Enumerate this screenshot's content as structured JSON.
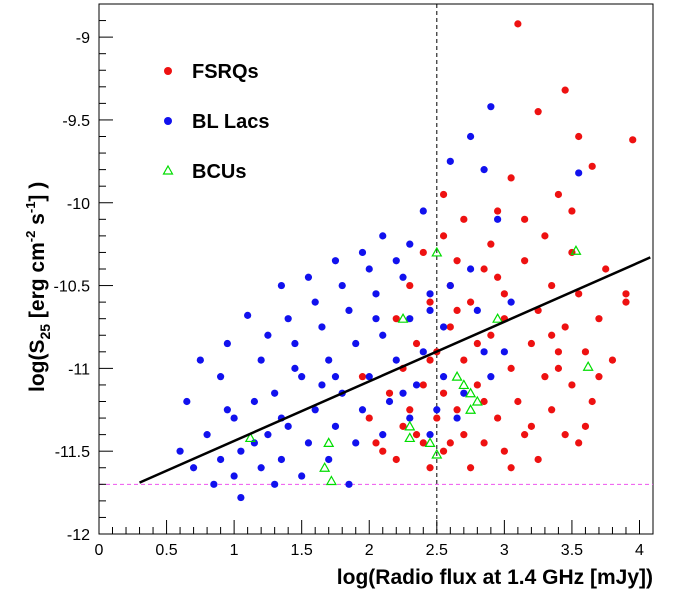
{
  "chart_data": {
    "type": "scatter",
    "xlabel": "log(Radio flux at 1.4 GHz [mJy])",
    "ylabel_main": "log(S",
    "ylabel_sub": "25",
    "ylabel_mid1": " [erg cm",
    "ylabel_sup1": "-2",
    "ylabel_mid2": " s",
    "ylabel_sup2": "-1",
    "ylabel_end": "] )",
    "xlim": [
      0,
      4.1
    ],
    "ylim": [
      -12,
      -8.8
    ],
    "x_ticks": [
      "0",
      "0.5",
      "1",
      "1.5",
      "2",
      "2.5",
      "3",
      "3.5",
      "4"
    ],
    "x_tick_values": [
      0,
      0.5,
      1,
      1.5,
      2,
      2.5,
      3,
      3.5,
      4
    ],
    "y_ticks": [
      "-12",
      "-11.5",
      "-11",
      "-10.5",
      "-10",
      "-9.5",
      "-9"
    ],
    "y_tick_values": [
      -12,
      -11.5,
      -11,
      -10.5,
      -10,
      -9.5,
      -9
    ],
    "legend_position": "top-left",
    "colors": {
      "fsrq": "#ee1111",
      "bllac": "#1111ee",
      "bcu": "#00dd00",
      "fit_line": "#000000",
      "vertical_ref": "#000000",
      "horizontal_ref": "#ee55ee"
    },
    "reference_lines": {
      "vertical_x": 2.5,
      "horizontal_y": -11.7
    },
    "fit_line": {
      "x": [
        0.3,
        4.08
      ],
      "y": [
        -11.69,
        -10.33
      ]
    },
    "series": [
      {
        "name": "FSRQs",
        "marker": "filled-circle",
        "points": [
          [
            3.1,
            -8.92
          ],
          [
            3.45,
            -9.32
          ],
          [
            3.25,
            -9.45
          ],
          [
            3.55,
            -9.6
          ],
          [
            3.95,
            -9.62
          ],
          [
            3.65,
            -9.78
          ],
          [
            3.4,
            -9.95
          ],
          [
            3.05,
            -9.85
          ],
          [
            2.95,
            -10.05
          ],
          [
            2.55,
            -9.95
          ],
          [
            2.7,
            -10.1
          ],
          [
            3.5,
            -10.05
          ],
          [
            3.75,
            -10.4
          ],
          [
            3.9,
            -10.55
          ],
          [
            3.3,
            -10.2
          ],
          [
            2.55,
            -10.2
          ],
          [
            2.4,
            -10.3
          ],
          [
            2.65,
            -10.35
          ],
          [
            2.85,
            -10.4
          ],
          [
            3.15,
            -10.35
          ],
          [
            3.35,
            -10.5
          ],
          [
            3.55,
            -10.55
          ],
          [
            3.7,
            -10.7
          ],
          [
            2.3,
            -10.5
          ],
          [
            2.45,
            -10.6
          ],
          [
            2.75,
            -10.6
          ],
          [
            3.0,
            -10.55
          ],
          [
            3.25,
            -10.65
          ],
          [
            3.45,
            -10.75
          ],
          [
            2.2,
            -10.7
          ],
          [
            2.6,
            -10.75
          ],
          [
            2.9,
            -10.8
          ],
          [
            3.2,
            -10.85
          ],
          [
            3.4,
            -10.9
          ],
          [
            3.6,
            -10.9
          ],
          [
            2.35,
            -10.85
          ],
          [
            2.5,
            -10.9
          ],
          [
            2.7,
            -10.95
          ],
          [
            3.05,
            -11.0
          ],
          [
            3.3,
            -11.05
          ],
          [
            3.5,
            -11.1
          ],
          [
            2.25,
            -11.0
          ],
          [
            2.4,
            -11.1
          ],
          [
            2.55,
            -11.15
          ],
          [
            2.8,
            -11.1
          ],
          [
            3.1,
            -11.2
          ],
          [
            3.35,
            -11.25
          ],
          [
            3.65,
            -11.2
          ],
          [
            2.3,
            -11.25
          ],
          [
            2.5,
            -11.3
          ],
          [
            2.65,
            -11.25
          ],
          [
            2.95,
            -11.3
          ],
          [
            3.2,
            -11.35
          ],
          [
            3.45,
            -11.4
          ],
          [
            2.35,
            -11.4
          ],
          [
            2.6,
            -11.45
          ],
          [
            2.85,
            -11.45
          ],
          [
            3.0,
            -11.5
          ],
          [
            3.25,
            -11.55
          ],
          [
            3.55,
            -11.45
          ],
          [
            2.2,
            -11.55
          ],
          [
            2.45,
            -11.6
          ],
          [
            2.75,
            -11.6
          ],
          [
            3.05,
            -11.6
          ],
          [
            2.1,
            -11.5
          ],
          [
            2.0,
            -11.3
          ],
          [
            1.95,
            -11.05
          ],
          [
            2.15,
            -11.15
          ],
          [
            2.05,
            -11.45
          ],
          [
            3.8,
            -10.95
          ],
          [
            3.9,
            -10.6
          ],
          [
            2.9,
            -10.25
          ],
          [
            3.15,
            -10.1
          ],
          [
            2.6,
            -10.5
          ],
          [
            2.85,
            -11.2
          ],
          [
            3.35,
            -10.8
          ],
          [
            3.6,
            -11.35
          ],
          [
            2.4,
            -11.45
          ],
          [
            2.55,
            -11.5
          ],
          [
            3.15,
            -11.4
          ],
          [
            2.25,
            -11.35
          ],
          [
            2.7,
            -11.4
          ],
          [
            3.4,
            -11.0
          ],
          [
            2.8,
            -10.85
          ],
          [
            2.45,
            -10.95
          ],
          [
            3.0,
            -10.7
          ],
          [
            3.7,
            -11.05
          ],
          [
            2.65,
            -10.65
          ],
          [
            2.95,
            -10.45
          ],
          [
            3.5,
            -10.3
          ]
        ]
      },
      {
        "name": "BL Lacs",
        "marker": "filled-circle",
        "points": [
          [
            2.9,
            -9.42
          ],
          [
            2.75,
            -9.6
          ],
          [
            2.85,
            -9.8
          ],
          [
            3.55,
            -9.82
          ],
          [
            2.6,
            -9.75
          ],
          [
            2.4,
            -10.05
          ],
          [
            2.3,
            -10.25
          ],
          [
            2.1,
            -10.2
          ],
          [
            1.95,
            -10.3
          ],
          [
            1.75,
            -10.35
          ],
          [
            1.55,
            -10.45
          ],
          [
            1.35,
            -10.5
          ],
          [
            1.1,
            -10.68
          ],
          [
            0.75,
            -10.95
          ],
          [
            0.9,
            -11.05
          ],
          [
            1.2,
            -10.95
          ],
          [
            1.45,
            -10.85
          ],
          [
            1.65,
            -10.75
          ],
          [
            1.85,
            -10.65
          ],
          [
            2.05,
            -10.55
          ],
          [
            2.25,
            -10.45
          ],
          [
            0.6,
            -11.5
          ],
          [
            0.8,
            -11.4
          ],
          [
            1.0,
            -11.3
          ],
          [
            1.15,
            -11.2
          ],
          [
            1.3,
            -11.15
          ],
          [
            1.5,
            -11.05
          ],
          [
            1.7,
            -10.95
          ],
          [
            1.9,
            -10.85
          ],
          [
            2.1,
            -10.8
          ],
          [
            2.3,
            -10.7
          ],
          [
            2.45,
            -10.65
          ],
          [
            0.7,
            -11.6
          ],
          [
            0.9,
            -11.55
          ],
          [
            1.05,
            -11.5
          ],
          [
            1.25,
            -11.4
          ],
          [
            1.4,
            -11.35
          ],
          [
            1.6,
            -11.25
          ],
          [
            1.8,
            -11.15
          ],
          [
            2.0,
            -11.05
          ],
          [
            2.2,
            -10.95
          ],
          [
            2.4,
            -10.9
          ],
          [
            0.85,
            -11.7
          ],
          [
            1.0,
            -11.65
          ],
          [
            1.2,
            -11.6
          ],
          [
            1.35,
            -11.55
          ],
          [
            1.55,
            -11.45
          ],
          [
            1.75,
            -11.35
          ],
          [
            1.95,
            -11.25
          ],
          [
            2.15,
            -11.2
          ],
          [
            2.35,
            -11.1
          ],
          [
            2.55,
            -11.05
          ],
          [
            1.05,
            -11.78
          ],
          [
            1.3,
            -11.7
          ],
          [
            1.5,
            -11.65
          ],
          [
            1.7,
            -11.55
          ],
          [
            1.9,
            -11.45
          ],
          [
            2.1,
            -11.4
          ],
          [
            2.3,
            -11.3
          ],
          [
            2.5,
            -11.25
          ],
          [
            2.7,
            -11.15
          ],
          [
            2.9,
            -11.05
          ],
          [
            1.6,
            -10.6
          ],
          [
            1.4,
            -10.7
          ],
          [
            1.8,
            -10.5
          ],
          [
            2.0,
            -10.4
          ],
          [
            2.2,
            -10.35
          ],
          [
            2.6,
            -10.5
          ],
          [
            2.8,
            -10.65
          ],
          [
            3.0,
            -10.9
          ],
          [
            2.65,
            -11.3
          ],
          [
            2.45,
            -11.4
          ],
          [
            1.85,
            -11.7
          ],
          [
            1.45,
            -11.0
          ],
          [
            1.25,
            -10.8
          ],
          [
            0.95,
            -10.85
          ],
          [
            1.15,
            -11.45
          ],
          [
            0.65,
            -11.2
          ],
          [
            1.65,
            -11.1
          ],
          [
            2.75,
            -10.4
          ],
          [
            2.95,
            -10.1
          ],
          [
            2.55,
            -10.75
          ],
          [
            0.95,
            -11.25
          ],
          [
            1.35,
            -11.3
          ],
          [
            1.75,
            -11.05
          ],
          [
            2.05,
            -10.7
          ],
          [
            2.25,
            -11.15
          ],
          [
            2.45,
            -10.55
          ],
          [
            2.85,
            -10.9
          ],
          [
            3.05,
            -10.6
          ]
        ]
      },
      {
        "name": "BCUs",
        "marker": "open-triangle",
        "points": [
          [
            3.53,
            -10.29
          ],
          [
            3.62,
            -10.99
          ],
          [
            2.25,
            -10.7
          ],
          [
            2.5,
            -10.3
          ],
          [
            2.7,
            -11.1
          ],
          [
            2.75,
            -11.25
          ],
          [
            2.8,
            -11.2
          ],
          [
            2.65,
            -11.05
          ],
          [
            2.3,
            -11.35
          ],
          [
            2.45,
            -11.45
          ],
          [
            1.72,
            -11.68
          ],
          [
            1.67,
            -11.6
          ],
          [
            1.12,
            -11.42
          ],
          [
            2.3,
            -11.42
          ],
          [
            2.5,
            -11.52
          ],
          [
            2.95,
            -10.7
          ],
          [
            2.75,
            -11.15
          ],
          [
            1.7,
            -11.45
          ]
        ]
      }
    ]
  }
}
